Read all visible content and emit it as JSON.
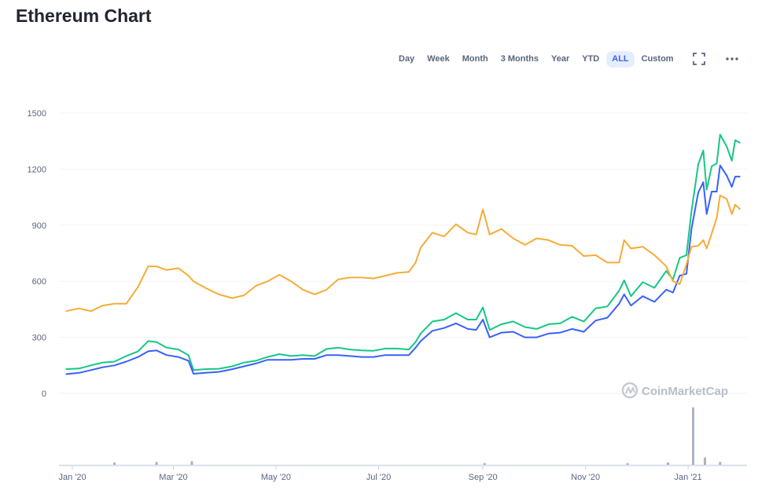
{
  "page": {
    "title": "Ethereum Chart"
  },
  "toolbar": {
    "ranges": [
      {
        "label": "Day",
        "active": false
      },
      {
        "label": "Week",
        "active": false
      },
      {
        "label": "Month",
        "active": false
      },
      {
        "label": "3 Months",
        "active": false
      },
      {
        "label": "Year",
        "active": false
      },
      {
        "label": "YTD",
        "active": false
      },
      {
        "label": "ALL",
        "active": true
      },
      {
        "label": "Custom",
        "active": false
      }
    ],
    "fullscreen_icon": "fullscreen-icon",
    "more_icon": "more-icon"
  },
  "watermark": {
    "text": "CoinMarketCap",
    "icon": "coinmarketcap-logo-icon"
  },
  "colors": {
    "green": "#16c784",
    "blue": "#3861fb",
    "orange": "#f5ac37",
    "grid": "#eff2f5"
  },
  "chart_data": {
    "type": "line",
    "title": "Ethereum Chart",
    "ylim": [
      0,
      1500
    ],
    "yticks": [
      "0",
      "300",
      "600",
      "900",
      "1200",
      "1500"
    ],
    "xticks": [
      {
        "label": "Jan '20",
        "date": "2020-01-01"
      },
      {
        "label": "Mar '20",
        "date": "2020-03-01"
      },
      {
        "label": "May '20",
        "date": "2020-05-01"
      },
      {
        "label": "Jul '20",
        "date": "2020-07-01"
      },
      {
        "label": "Sep '20",
        "date": "2020-09-01"
      },
      {
        "label": "Nov '20",
        "date": "2020-11-01"
      },
      {
        "label": "Jan '21",
        "date": "2021-01-01"
      }
    ],
    "grid": true,
    "series": [
      {
        "color": "#16c784",
        "points": [
          [
            "2019-12-28",
            130
          ],
          [
            "2020-01-05",
            133
          ],
          [
            "2020-01-12",
            150
          ],
          [
            "2020-01-19",
            165
          ],
          [
            "2020-01-26",
            170
          ],
          [
            "2020-02-02",
            200
          ],
          [
            "2020-02-09",
            225
          ],
          [
            "2020-02-15",
            280
          ],
          [
            "2020-02-20",
            275
          ],
          [
            "2020-02-26",
            245
          ],
          [
            "2020-03-04",
            235
          ],
          [
            "2020-03-10",
            205
          ],
          [
            "2020-03-13",
            125
          ],
          [
            "2020-03-20",
            130
          ],
          [
            "2020-03-28",
            132
          ],
          [
            "2020-04-05",
            145
          ],
          [
            "2020-04-12",
            165
          ],
          [
            "2020-04-19",
            175
          ],
          [
            "2020-04-26",
            195
          ],
          [
            "2020-05-03",
            210
          ],
          [
            "2020-05-10",
            200
          ],
          [
            "2020-05-17",
            205
          ],
          [
            "2020-05-24",
            200
          ],
          [
            "2020-05-31",
            238
          ],
          [
            "2020-06-07",
            245
          ],
          [
            "2020-06-14",
            235
          ],
          [
            "2020-06-21",
            230
          ],
          [
            "2020-06-28",
            228
          ],
          [
            "2020-07-05",
            240
          ],
          [
            "2020-07-12",
            240
          ],
          [
            "2020-07-19",
            235
          ],
          [
            "2020-07-23",
            275
          ],
          [
            "2020-07-26",
            320
          ],
          [
            "2020-08-02",
            385
          ],
          [
            "2020-08-09",
            395
          ],
          [
            "2020-08-16",
            430
          ],
          [
            "2020-08-23",
            395
          ],
          [
            "2020-08-28",
            395
          ],
          [
            "2020-09-01",
            460
          ],
          [
            "2020-09-05",
            340
          ],
          [
            "2020-09-12",
            370
          ],
          [
            "2020-09-19",
            385
          ],
          [
            "2020-09-26",
            355
          ],
          [
            "2020-10-03",
            345
          ],
          [
            "2020-10-10",
            370
          ],
          [
            "2020-10-17",
            375
          ],
          [
            "2020-10-24",
            410
          ],
          [
            "2020-10-31",
            385
          ],
          [
            "2020-11-07",
            455
          ],
          [
            "2020-11-14",
            465
          ],
          [
            "2020-11-21",
            550
          ],
          [
            "2020-11-24",
            605
          ],
          [
            "2020-11-28",
            520
          ],
          [
            "2020-12-05",
            595
          ],
          [
            "2020-12-12",
            565
          ],
          [
            "2020-12-19",
            655
          ],
          [
            "2020-12-23",
            610
          ],
          [
            "2020-12-27",
            725
          ],
          [
            "2020-12-31",
            740
          ],
          [
            "2021-01-03",
            975
          ],
          [
            "2021-01-07",
            1225
          ],
          [
            "2021-01-10",
            1300
          ],
          [
            "2021-01-12",
            1090
          ],
          [
            "2021-01-15",
            1215
          ],
          [
            "2021-01-18",
            1230
          ],
          [
            "2021-01-20",
            1385
          ],
          [
            "2021-01-24",
            1320
          ],
          [
            "2021-01-27",
            1245
          ],
          [
            "2021-01-29",
            1355
          ],
          [
            "2021-02-01",
            1340
          ]
        ]
      },
      {
        "color": "#3861fb",
        "points": [
          [
            "2019-12-28",
            103
          ],
          [
            "2020-01-05",
            110
          ],
          [
            "2020-01-12",
            125
          ],
          [
            "2020-01-19",
            140
          ],
          [
            "2020-01-26",
            150
          ],
          [
            "2020-02-02",
            170
          ],
          [
            "2020-02-09",
            195
          ],
          [
            "2020-02-15",
            225
          ],
          [
            "2020-02-20",
            230
          ],
          [
            "2020-02-26",
            205
          ],
          [
            "2020-03-04",
            195
          ],
          [
            "2020-03-10",
            175
          ],
          [
            "2020-03-13",
            105
          ],
          [
            "2020-03-20",
            110
          ],
          [
            "2020-03-28",
            115
          ],
          [
            "2020-04-05",
            130
          ],
          [
            "2020-04-12",
            145
          ],
          [
            "2020-04-19",
            160
          ],
          [
            "2020-04-26",
            180
          ],
          [
            "2020-05-03",
            180
          ],
          [
            "2020-05-10",
            180
          ],
          [
            "2020-05-17",
            185
          ],
          [
            "2020-05-24",
            185
          ],
          [
            "2020-05-31",
            205
          ],
          [
            "2020-06-07",
            205
          ],
          [
            "2020-06-14",
            200
          ],
          [
            "2020-06-21",
            195
          ],
          [
            "2020-06-28",
            195
          ],
          [
            "2020-07-05",
            205
          ],
          [
            "2020-07-12",
            205
          ],
          [
            "2020-07-19",
            205
          ],
          [
            "2020-07-23",
            245
          ],
          [
            "2020-07-26",
            280
          ],
          [
            "2020-08-02",
            335
          ],
          [
            "2020-08-09",
            350
          ],
          [
            "2020-08-16",
            375
          ],
          [
            "2020-08-23",
            345
          ],
          [
            "2020-08-28",
            340
          ],
          [
            "2020-09-01",
            395
          ],
          [
            "2020-09-05",
            300
          ],
          [
            "2020-09-12",
            325
          ],
          [
            "2020-09-19",
            330
          ],
          [
            "2020-09-26",
            300
          ],
          [
            "2020-10-03",
            300
          ],
          [
            "2020-10-10",
            320
          ],
          [
            "2020-10-17",
            325
          ],
          [
            "2020-10-24",
            345
          ],
          [
            "2020-10-31",
            330
          ],
          [
            "2020-11-07",
            390
          ],
          [
            "2020-11-14",
            405
          ],
          [
            "2020-11-21",
            480
          ],
          [
            "2020-11-24",
            530
          ],
          [
            "2020-11-28",
            470
          ],
          [
            "2020-12-05",
            520
          ],
          [
            "2020-12-12",
            490
          ],
          [
            "2020-12-19",
            555
          ],
          [
            "2020-12-23",
            540
          ],
          [
            "2020-12-27",
            630
          ],
          [
            "2020-12-31",
            640
          ],
          [
            "2021-01-03",
            880
          ],
          [
            "2021-01-07",
            1075
          ],
          [
            "2021-01-10",
            1130
          ],
          [
            "2021-01-12",
            960
          ],
          [
            "2021-01-15",
            1080
          ],
          [
            "2021-01-18",
            1080
          ],
          [
            "2021-01-20",
            1220
          ],
          [
            "2021-01-24",
            1165
          ],
          [
            "2021-01-27",
            1105
          ],
          [
            "2021-01-29",
            1160
          ],
          [
            "2021-02-01",
            1160
          ]
        ]
      },
      {
        "color": "#f5ac37",
        "points": [
          [
            "2019-12-28",
            440
          ],
          [
            "2020-01-05",
            455
          ],
          [
            "2020-01-12",
            440
          ],
          [
            "2020-01-19",
            470
          ],
          [
            "2020-01-26",
            480
          ],
          [
            "2020-02-02",
            480
          ],
          [
            "2020-02-09",
            570
          ],
          [
            "2020-02-15",
            680
          ],
          [
            "2020-02-20",
            680
          ],
          [
            "2020-02-26",
            660
          ],
          [
            "2020-03-04",
            670
          ],
          [
            "2020-03-10",
            630
          ],
          [
            "2020-03-13",
            600
          ],
          [
            "2020-03-20",
            565
          ],
          [
            "2020-03-28",
            530
          ],
          [
            "2020-04-05",
            510
          ],
          [
            "2020-04-12",
            525
          ],
          [
            "2020-04-19",
            575
          ],
          [
            "2020-04-26",
            600
          ],
          [
            "2020-05-03",
            635
          ],
          [
            "2020-05-10",
            600
          ],
          [
            "2020-05-17",
            555
          ],
          [
            "2020-05-24",
            530
          ],
          [
            "2020-05-31",
            555
          ],
          [
            "2020-06-07",
            610
          ],
          [
            "2020-06-14",
            620
          ],
          [
            "2020-06-21",
            620
          ],
          [
            "2020-06-28",
            615
          ],
          [
            "2020-07-05",
            630
          ],
          [
            "2020-07-12",
            645
          ],
          [
            "2020-07-19",
            650
          ],
          [
            "2020-07-23",
            700
          ],
          [
            "2020-07-26",
            780
          ],
          [
            "2020-08-02",
            860
          ],
          [
            "2020-08-09",
            840
          ],
          [
            "2020-08-16",
            905
          ],
          [
            "2020-08-23",
            860
          ],
          [
            "2020-08-28",
            850
          ],
          [
            "2020-09-01",
            985
          ],
          [
            "2020-09-05",
            850
          ],
          [
            "2020-09-12",
            880
          ],
          [
            "2020-09-19",
            830
          ],
          [
            "2020-09-26",
            795
          ],
          [
            "2020-10-03",
            830
          ],
          [
            "2020-10-10",
            820
          ],
          [
            "2020-10-17",
            795
          ],
          [
            "2020-10-24",
            790
          ],
          [
            "2020-10-31",
            735
          ],
          [
            "2020-11-07",
            740
          ],
          [
            "2020-11-14",
            700
          ],
          [
            "2020-11-21",
            700
          ],
          [
            "2020-11-24",
            820
          ],
          [
            "2020-11-28",
            775
          ],
          [
            "2020-12-05",
            785
          ],
          [
            "2020-12-12",
            740
          ],
          [
            "2020-12-19",
            680
          ],
          [
            "2020-12-23",
            600
          ],
          [
            "2020-12-27",
            585
          ],
          [
            "2020-12-31",
            690
          ],
          [
            "2021-01-03",
            785
          ],
          [
            "2021-01-07",
            790
          ],
          [
            "2021-01-10",
            820
          ],
          [
            "2021-01-12",
            775
          ],
          [
            "2021-01-15",
            855
          ],
          [
            "2021-01-18",
            940
          ],
          [
            "2021-01-20",
            1060
          ],
          [
            "2021-01-24",
            1040
          ],
          [
            "2021-01-27",
            960
          ],
          [
            "2021-01-29",
            1010
          ],
          [
            "2021-02-01",
            985
          ]
        ]
      }
    ],
    "volume": [
      [
        "2020-01-26",
        0.04
      ],
      [
        "2020-02-20",
        0.05
      ],
      [
        "2020-03-12",
        0.06
      ],
      [
        "2020-09-02",
        0.03
      ],
      [
        "2020-11-26",
        0.03
      ],
      [
        "2020-12-20",
        0.04
      ],
      [
        "2021-01-04",
        0.95
      ],
      [
        "2021-01-11",
        0.12
      ],
      [
        "2021-01-20",
        0.05
      ]
    ]
  }
}
